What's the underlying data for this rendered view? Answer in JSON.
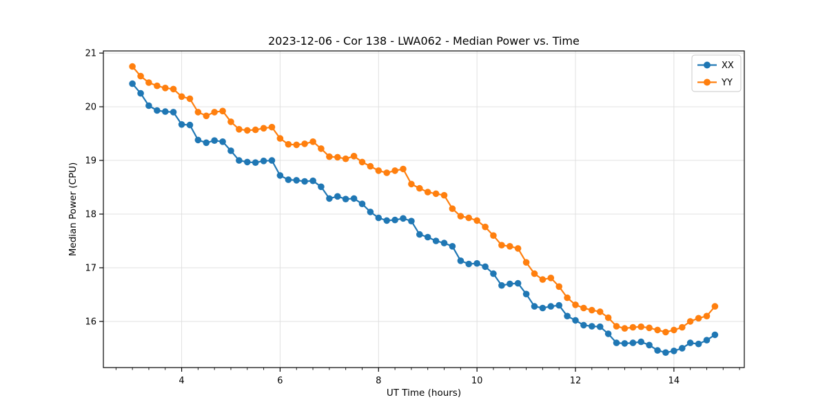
{
  "figure": {
    "background": "#ffffff"
  },
  "chart_data": {
    "type": "line",
    "title": "2023-12-06 - Cor 138 - LWA062 - Median Power vs. Time",
    "xlabel": "UT Time (hours)",
    "ylabel": "Median Power (CPU)",
    "xlim": [
      2.41,
      15.43
    ],
    "ylim": [
      15.14,
      21.04
    ],
    "x_ticks": [
      4,
      6,
      8,
      10,
      12,
      14
    ],
    "x_minor_tick_step": 0.3333,
    "y_ticks": [
      16,
      17,
      18,
      19,
      20,
      21
    ],
    "grid": true,
    "legend": {
      "position": "upper right",
      "entries": [
        "XX",
        "YY"
      ]
    },
    "x": [
      3.0,
      3.167,
      3.333,
      3.5,
      3.667,
      3.833,
      4.0,
      4.167,
      4.333,
      4.5,
      4.667,
      4.833,
      5.0,
      5.167,
      5.333,
      5.5,
      5.667,
      5.833,
      6.0,
      6.167,
      6.333,
      6.5,
      6.667,
      6.833,
      7.0,
      7.167,
      7.333,
      7.5,
      7.667,
      7.833,
      8.0,
      8.167,
      8.333,
      8.5,
      8.667,
      8.833,
      9.0,
      9.167,
      9.333,
      9.5,
      9.667,
      9.833,
      10.0,
      10.167,
      10.333,
      10.5,
      10.667,
      10.833,
      11.0,
      11.167,
      11.333,
      11.5,
      11.667,
      11.833,
      12.0,
      12.167,
      12.333,
      12.5,
      12.667,
      12.833,
      13.0,
      13.167,
      13.333,
      13.5,
      13.667,
      13.833,
      14.0,
      14.167,
      14.333,
      14.5,
      14.667,
      14.833
    ],
    "series": [
      {
        "name": "XX",
        "color": "#1f77b4",
        "marker": "circle",
        "values": [
          20.43,
          20.25,
          20.02,
          19.93,
          19.91,
          19.9,
          19.67,
          19.66,
          19.38,
          19.33,
          19.37,
          19.35,
          19.18,
          19.0,
          18.97,
          18.96,
          18.99,
          19.0,
          18.72,
          18.64,
          18.63,
          18.61,
          18.62,
          18.51,
          18.29,
          18.33,
          18.28,
          18.29,
          18.19,
          18.04,
          17.93,
          17.88,
          17.89,
          17.92,
          17.87,
          17.62,
          17.57,
          17.5,
          17.46,
          17.4,
          17.13,
          17.07,
          17.08,
          17.02,
          16.89,
          16.67,
          16.7,
          16.71,
          16.51,
          16.28,
          16.25,
          16.28,
          16.3,
          16.1,
          16.02,
          15.93,
          15.91,
          15.9,
          15.77,
          15.6,
          15.59,
          15.6,
          15.62,
          15.56,
          15.46,
          15.42,
          15.45,
          15.5,
          15.6,
          15.58,
          15.65,
          15.75
        ]
      },
      {
        "name": "YY",
        "color": "#ff7f0e",
        "marker": "circle",
        "values": [
          20.75,
          20.57,
          20.45,
          20.39,
          20.35,
          20.33,
          20.19,
          20.15,
          19.9,
          19.83,
          19.9,
          19.92,
          19.72,
          19.58,
          19.56,
          19.57,
          19.6,
          19.62,
          19.41,
          19.3,
          19.29,
          19.31,
          19.35,
          19.22,
          19.07,
          19.06,
          19.03,
          19.08,
          18.97,
          18.89,
          18.81,
          18.77,
          18.81,
          18.84,
          18.56,
          18.48,
          18.41,
          18.38,
          18.35,
          18.1,
          17.96,
          17.93,
          17.88,
          17.76,
          17.6,
          17.42,
          17.4,
          17.36,
          17.1,
          16.89,
          16.78,
          16.81,
          16.65,
          16.44,
          16.31,
          16.25,
          16.21,
          16.18,
          16.07,
          15.91,
          15.87,
          15.89,
          15.9,
          15.88,
          15.84,
          15.8,
          15.84,
          15.89,
          16.0,
          16.06,
          16.1,
          16.28
        ]
      }
    ]
  },
  "colors": {
    "background": "#ffffff",
    "grid": "#e0e0e0",
    "spine": "#000000",
    "text": "#000000",
    "legend_border": "#c8c8c8",
    "legend_fill": "#ffffff"
  }
}
